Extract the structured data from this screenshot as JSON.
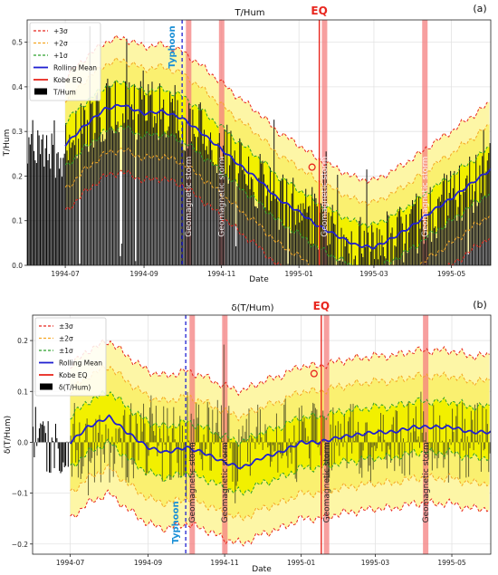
{
  "chart_data": [
    {
      "panel_label": "(a)",
      "type": "bar",
      "title": "T/Hum",
      "xlabel": "Date",
      "ylabel": "T/Hum",
      "x_range": [
        "1994-06-01",
        "1995-06-01"
      ],
      "ylim": [
        0,
        0.55
      ],
      "yticks": [
        0.0,
        0.1,
        0.2,
        0.3,
        0.4,
        0.5
      ],
      "ytick_labels": [
        "0.0",
        "0.1",
        "0.2",
        "0.3",
        "0.4",
        "0.5"
      ],
      "xticks": [
        "1994-07-01",
        "1994-09-01",
        "1994-11-01",
        "1995-01-01",
        "1995-03-01",
        "1995-05-01"
      ],
      "xtick_labels": [
        "1994-07",
        "1994-09",
        "1994-11",
        "1995-01",
        "1995-03",
        "1995-05"
      ],
      "grid": true,
      "legend_position": "top-left",
      "legend": [
        {
          "label": "+3σ",
          "color": "#e8261e",
          "style": "dashed"
        },
        {
          "label": "+2σ",
          "color": "#f5a623",
          "style": "dashed"
        },
        {
          "label": "+1σ",
          "color": "#2ca02c",
          "style": "dashed"
        },
        {
          "label": "Rolling Mean",
          "color": "#1f1fd1",
          "style": "solid"
        },
        {
          "label": "Kobe EQ",
          "color": "#e8261e",
          "style": "solid"
        },
        {
          "label": "T/Hum",
          "color": "#000000",
          "style": "bar"
        }
      ],
      "rolling_mean": {
        "dates": [
          "1994-07-01",
          "1994-07-15",
          "1994-08-01",
          "1994-08-15",
          "1994-09-01",
          "1994-09-15",
          "1994-10-01",
          "1994-10-15",
          "1994-11-01",
          "1994-11-15",
          "1994-12-01",
          "1994-12-15",
          "1995-01-01",
          "1995-01-15",
          "1995-02-01",
          "1995-02-15",
          "1995-03-01",
          "1995-03-15",
          "1995-04-01",
          "1995-04-15",
          "1995-05-01",
          "1995-05-15",
          "1995-06-01"
        ],
        "values": [
          0.27,
          0.31,
          0.35,
          0.36,
          0.34,
          0.345,
          0.33,
          0.3,
          0.26,
          0.225,
          0.19,
          0.15,
          0.12,
          0.09,
          0.065,
          0.045,
          0.04,
          0.06,
          0.09,
          0.12,
          0.15,
          0.18,
          0.215
        ]
      },
      "sigma": [
        0.05,
        0.1,
        0.15
      ],
      "events": {
        "typhoon": {
          "label": "Typhoon",
          "date": "1994-10-01",
          "color": "#1f1fd1"
        },
        "kobe_eq": {
          "label": "EQ",
          "date": "1995-01-17",
          "color": "#e8261e",
          "marker_value": 0.22
        },
        "geomagnetic_storms": [
          {
            "label": "Geomagnetic storm",
            "start": "1994-10-04",
            "end": "1994-10-08"
          },
          {
            "label": "Geomagnetic storm",
            "start": "1994-10-30",
            "end": "1994-11-03"
          },
          {
            "label": "Geomagnetic storm",
            "start": "1995-01-19",
            "end": "1995-01-23"
          },
          {
            "label": "Geomagnetic storm",
            "start": "1995-04-08",
            "end": "1995-04-12"
          }
        ]
      }
    },
    {
      "panel_label": "(b)",
      "type": "bar",
      "title": "δ(T/Hum)",
      "xlabel": "Date",
      "ylabel": "δ(T/Hum)",
      "x_range": [
        "1994-06-01",
        "1995-06-01"
      ],
      "ylim": [
        -0.22,
        0.25
      ],
      "yticks": [
        -0.2,
        -0.1,
        0.0,
        0.1,
        0.2
      ],
      "ytick_labels": [
        "−0.2",
        "−0.1",
        "0.0",
        "0.1",
        "0.2"
      ],
      "xticks": [
        "1994-07-01",
        "1994-09-01",
        "1994-11-01",
        "1995-01-01",
        "1995-03-01",
        "1995-05-01"
      ],
      "xtick_labels": [
        "1994-07",
        "1994-09",
        "1994-11",
        "1995-01",
        "1995-03",
        "1995-05"
      ],
      "grid": true,
      "legend_position": "top-left",
      "legend": [
        {
          "label": "±3σ",
          "color": "#e8261e",
          "style": "dashed"
        },
        {
          "label": "±2σ",
          "color": "#f5a623",
          "style": "dashed"
        },
        {
          "label": "±1σ",
          "color": "#2ca02c",
          "style": "dashed"
        },
        {
          "label": "Rolling Mean",
          "color": "#1f1fd1",
          "style": "solid"
        },
        {
          "label": "Kobe EQ",
          "color": "#e8261e",
          "style": "solid"
        },
        {
          "label": "δ(T/Hum)",
          "color": "#000000",
          "style": "bar"
        }
      ],
      "rolling_mean": {
        "dates": [
          "1994-07-01",
          "1994-07-15",
          "1994-08-01",
          "1994-08-15",
          "1994-09-01",
          "1994-09-15",
          "1994-10-01",
          "1994-10-15",
          "1994-11-01",
          "1994-11-15",
          "1994-12-01",
          "1994-12-15",
          "1995-01-01",
          "1995-01-15",
          "1995-02-01",
          "1995-02-15",
          "1995-03-01",
          "1995-03-15",
          "1995-04-01",
          "1995-04-15",
          "1995-05-01",
          "1995-05-15",
          "1995-06-01"
        ],
        "values": [
          0.0,
          0.03,
          0.05,
          0.02,
          -0.01,
          -0.02,
          -0.01,
          -0.02,
          -0.04,
          -0.05,
          -0.03,
          -0.02,
          0.0,
          0.0,
          0.01,
          0.015,
          0.02,
          0.02,
          0.03,
          0.03,
          0.03,
          0.02,
          0.02
        ]
      },
      "sigma": [
        0.05,
        0.1,
        0.15
      ],
      "events": {
        "typhoon": {
          "label": "Typhoon",
          "date": "1994-10-01",
          "color": "#1f1fd1"
        },
        "kobe_eq": {
          "label": "EQ",
          "date": "1995-01-17",
          "color": "#e8261e",
          "marker_value": 0.135
        },
        "geomagnetic_storms": [
          {
            "label": "Geomagnetic storm",
            "start": "1994-10-04",
            "end": "1994-10-08"
          },
          {
            "label": "Geomagnetic storm",
            "start": "1994-10-30",
            "end": "1994-11-03"
          },
          {
            "label": "Geomagnetic storm",
            "start": "1995-01-19",
            "end": "1995-01-23"
          },
          {
            "label": "Geomagnetic storm",
            "start": "1995-04-08",
            "end": "1995-04-12"
          }
        ]
      }
    }
  ]
}
